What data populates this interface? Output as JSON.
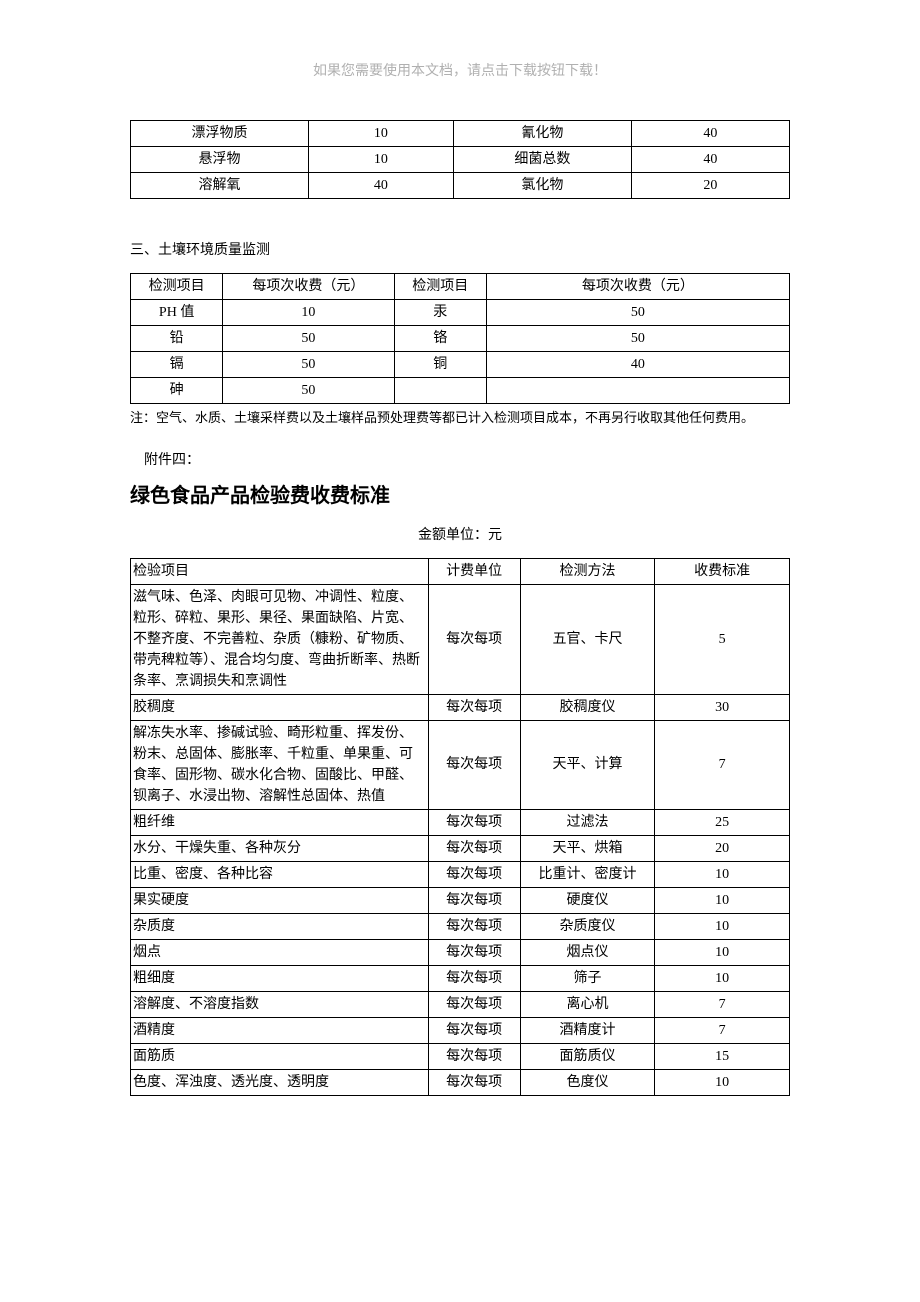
{
  "header_note": "如果您需要使用本文档，请点击下载按钮下载！",
  "table1": {
    "rows": [
      [
        "漂浮物质",
        "10",
        "氰化物",
        "40"
      ],
      [
        "悬浮物",
        "10",
        "细菌总数",
        "40"
      ],
      [
        "溶解氧",
        "40",
        "氯化物",
        "20"
      ]
    ]
  },
  "section3_title": "三、土壤环境质量监测",
  "table2": {
    "header": [
      "检测项目",
      "每项次收费（元）",
      "检测项目",
      "每项次收费（元）"
    ],
    "rows": [
      [
        "PH 值",
        "10",
        "汞",
        "50"
      ],
      [
        "铅",
        "50",
        "铬",
        "50"
      ],
      [
        "镉",
        "50",
        "铜",
        "40"
      ],
      [
        "砷",
        "50",
        "",
        ""
      ]
    ]
  },
  "note_text": "注：空气、水质、土壤采样费以及土壤样品预处理费等都已计入检测项目成本，不再另行收取其他任何费用。",
  "attach_label": "附件四：",
  "big_title": "绿色食品产品检验费收费标准",
  "unit_line": "金额单位：元",
  "table3": {
    "header": [
      "检验项目",
      "计费单位",
      "检测方法",
      "收费标准"
    ],
    "rows": [
      {
        "item": "滋气味、色泽、肉眼可见物、冲调性、粒度、粒形、碎粒、果形、果径、果面缺陷、片宽、不整齐度、不完善粒、杂质（糠粉、矿物质、带壳稗粒等）、混合均匀度、弯曲折断率、热断条率、烹调损失和烹调性",
        "unit": "每次每项",
        "method": "五官、卡尺",
        "fee": "5",
        "tall": true
      },
      {
        "item": "胶稠度",
        "unit": "每次每项",
        "method": "胶稠度仪",
        "fee": "30"
      },
      {
        "item": "解冻失水率、掺碱试验、畸形粒重、挥发份、粉末、总固体、膨胀率、千粒重、单果重、可食率、固形物、碳水化合物、固酸比、甲醛、钡离子、水浸出物、溶解性总固体、热值",
        "unit": "每次每项",
        "method": "天平、计算",
        "fee": "7",
        "tall": true
      },
      {
        "item": "粗纤维",
        "unit": "每次每项",
        "method": "过滤法",
        "fee": "25"
      },
      {
        "item": "水分、干燥失重、各种灰分",
        "unit": "每次每项",
        "method": "天平、烘箱",
        "fee": "20"
      },
      {
        "item": "比重、密度、各种比容",
        "unit": "每次每项",
        "method": "比重计、密度计",
        "fee": "10"
      },
      {
        "item": "果实硬度",
        "unit": "每次每项",
        "method": "硬度仪",
        "fee": "10"
      },
      {
        "item": "杂质度",
        "unit": "每次每项",
        "method": "杂质度仪",
        "fee": "10"
      },
      {
        "item": "烟点",
        "unit": "每次每项",
        "method": "烟点仪",
        "fee": "10"
      },
      {
        "item": "粗细度",
        "unit": "每次每项",
        "method": "筛子",
        "fee": "10"
      },
      {
        "item": "溶解度、不溶度指数",
        "unit": "每次每项",
        "method": "离心机",
        "fee": "7"
      },
      {
        "item": "酒精度",
        "unit": "每次每项",
        "method": "酒精度计",
        "fee": "7"
      },
      {
        "item": "面筋质",
        "unit": "每次每项",
        "method": "面筋质仪",
        "fee": "15"
      },
      {
        "item": "色度、浑浊度、透光度、透明度",
        "unit": "每次每项",
        "method": "色度仪",
        "fee": "10"
      }
    ]
  }
}
